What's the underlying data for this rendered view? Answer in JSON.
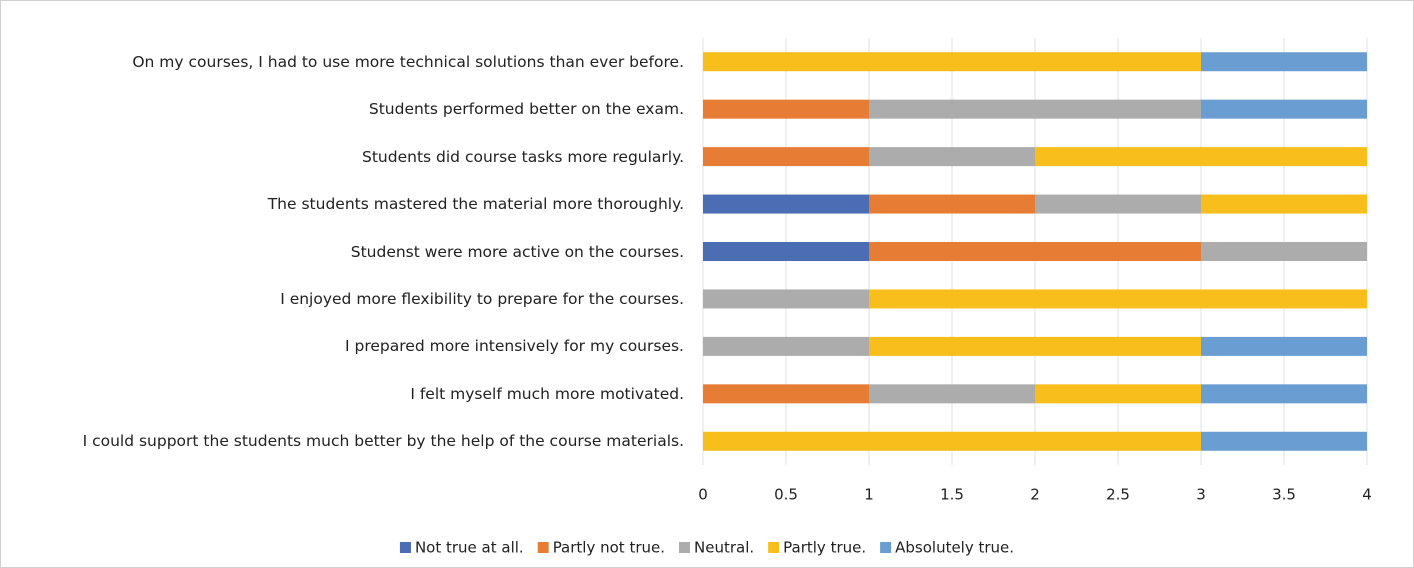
{
  "chart_data": {
    "type": "stacked-barh",
    "categories": [
      "On my courses, I had to use more technical solutions than ever before.",
      "Students performed better on the exam.",
      "Students did course tasks more regularly.",
      "The students mastered the material more thoroughly.",
      "Studenst were more active on the courses.",
      "I enjoyed more flexibility to prepare for the courses.",
      "I prepared more intensively for my courses.",
      "I felt myself much more motivated.",
      "I could support the students much better by the help of the course materials."
    ],
    "series": [
      {
        "name": "Not true at all.",
        "color": "#4a6db3",
        "values": [
          0,
          0,
          0,
          1,
          1,
          0,
          0,
          0,
          0
        ]
      },
      {
        "name": "Partly not true.",
        "color": "#e77d35",
        "values": [
          0,
          1,
          1,
          1,
          2,
          0,
          0,
          1,
          0
        ]
      },
      {
        "name": "Neutral.",
        "color": "#acacac",
        "values": [
          0,
          2,
          1,
          1,
          1,
          1,
          1,
          1,
          0
        ]
      },
      {
        "name": "Partly true.",
        "color": "#f8bf1c",
        "values": [
          3,
          0,
          2,
          1,
          0,
          3,
          2,
          1,
          3
        ]
      },
      {
        "name": "Absolutely true.",
        "color": "#6a9ed2",
        "values": [
          1,
          1,
          0,
          0,
          0,
          0,
          1,
          1,
          1
        ]
      }
    ],
    "xlim": [
      0,
      4
    ],
    "xticks": [
      0,
      0.5,
      1,
      1.5,
      2,
      2.5,
      3,
      3.5,
      4
    ],
    "grid": true,
    "legend": "bottom"
  }
}
